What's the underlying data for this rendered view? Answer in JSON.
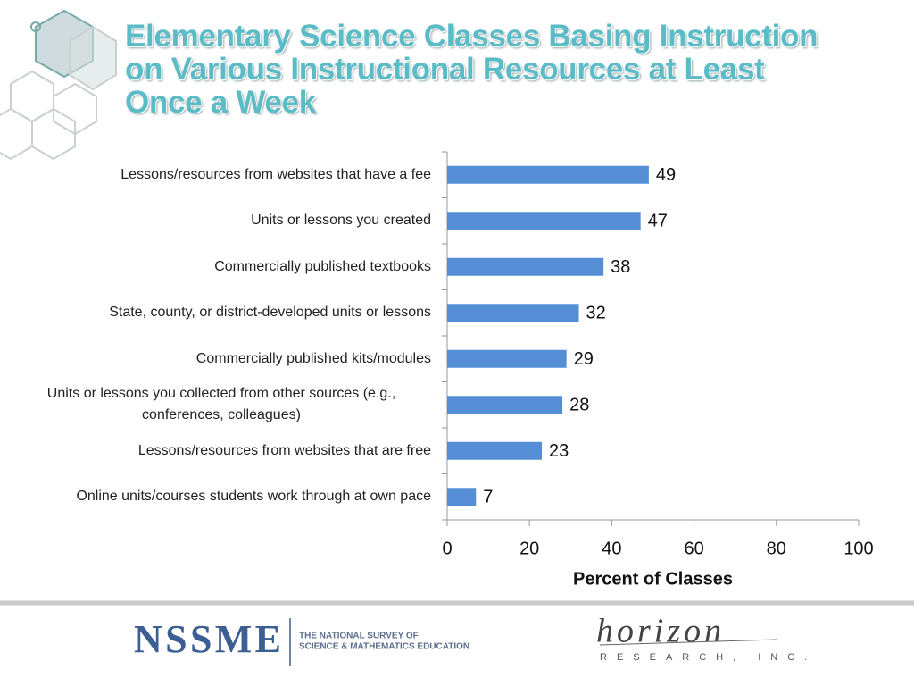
{
  "chart_data": {
    "type": "bar",
    "orientation": "horizontal",
    "title": "Elementary Science Classes Basing Instruction on Various Instructional Resources at Least Once a Week",
    "categories": [
      "Lessons/resources from websites that have a fee",
      "Units or lessons you created",
      "Commercially published textbooks",
      "State, county, or district-developed units or lessons",
      "Commercially published kits/modules",
      "Units or lessons you collected from other sources (e.g., conferences, colleagues)",
      "Lessons/resources from websites that are free",
      "Online units/courses students work through at own pace"
    ],
    "values": [
      49,
      47,
      38,
      32,
      29,
      28,
      23,
      7
    ],
    "color": "#558ed5",
    "x_label": "Percent of Classes",
    "xlim": [
      0,
      100
    ],
    "xticks": [
      0,
      20,
      40,
      60,
      80,
      100
    ],
    "grid": false
  },
  "footer": {
    "logo": "NSSME",
    "logo_line1": "THE NATIONAL SURVEY OF",
    "logo_line2": "SCIENCE & MATHEMATICS EDUCATION",
    "partner": "horizon",
    "partner_sub": "RESEARCH, INC."
  }
}
